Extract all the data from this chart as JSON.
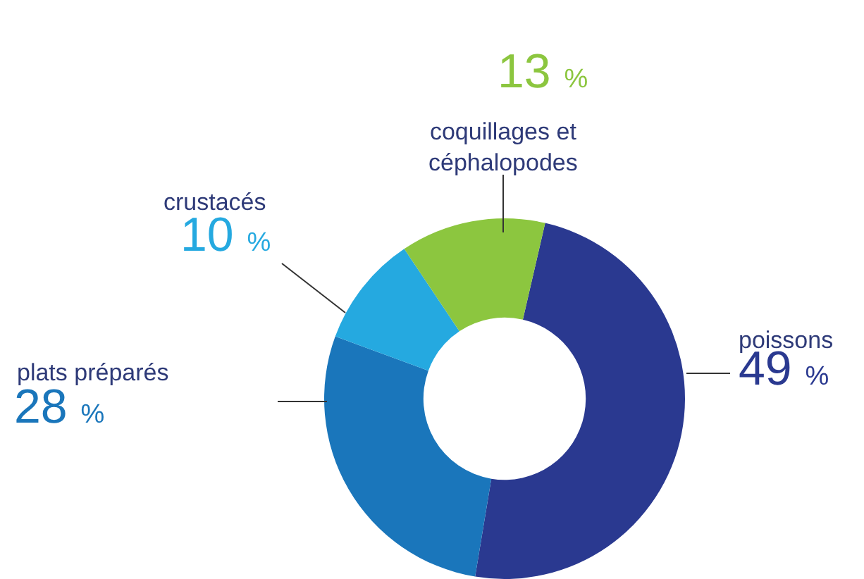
{
  "chart_data": {
    "type": "donut",
    "categories": [
      "poissons",
      "plats préparés",
      "crustacés",
      "coquillages et céphalopodes"
    ],
    "values": [
      49,
      28,
      10,
      13
    ],
    "colors": [
      "#2a3990",
      "#1a76bb",
      "#25a9e0",
      "#8cc63f"
    ],
    "value_labels": [
      "49 %",
      "28 %",
      "10 %",
      "13 %"
    ],
    "legend": false
  }
}
